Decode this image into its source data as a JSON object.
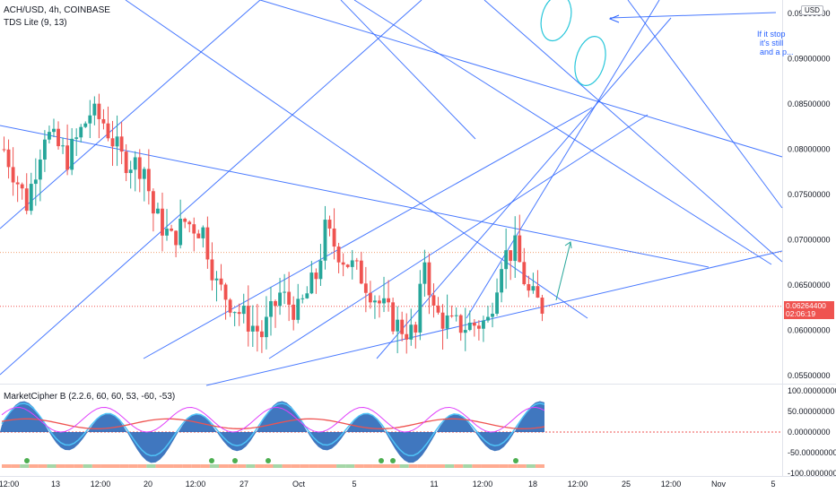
{
  "header": {
    "symbol_line": "ACH/USD, 4h, COINBASE",
    "indicator_line": "TDS Lite (9, 13)",
    "currency_badge": "USD"
  },
  "price_tag": {
    "price": "0.06264400",
    "countdown": "02:06:19",
    "color": "#ef5350"
  },
  "annotation": {
    "lines": [
      "If it stop",
      "it's still",
      "and a p..."
    ],
    "color": "#2962ff"
  },
  "lower_pane": {
    "title": "MarketCipher B (2.2.6, 60, 60, 53, -60, -53)"
  },
  "colors": {
    "up": "#26a69a",
    "down": "#ef5350",
    "trendline": "#2962ff",
    "wave_blue": "#1e5fb4",
    "wave_light": "#4fc3f7",
    "money_flow_red": "#ef5350",
    "money_flow_green": "#8bc34a",
    "vwap_magenta": "#e040fb"
  },
  "chart_data": [
    {
      "type": "candlestick",
      "title": "ACH/USD, 4h, COINBASE",
      "xlabel": "",
      "ylabel": "",
      "x_ticks": [
        "12:00",
        "13",
        "12:00",
        "20",
        "12:00",
        "27",
        "Oct",
        "5",
        "11",
        "12:00",
        "18",
        "12:00",
        "25",
        "12:00",
        "Nov",
        "5"
      ],
      "y_ticks": [
        "0.09500000",
        "0.09000000",
        "0.08500000",
        "0.08000000",
        "0.07500000",
        "0.07000000",
        "0.06500000",
        "0.06000000",
        "0.05500000"
      ],
      "ylim": [
        0.053,
        0.097
      ],
      "last_price": 0.062644,
      "reference_line": 0.0686,
      "candle_count": 120,
      "price_path_anchors": [
        [
          0,
          0.08
        ],
        [
          5,
          0.074
        ],
        [
          9,
          0.082
        ],
        [
          14,
          0.079
        ],
        [
          19,
          0.084
        ],
        [
          22,
          0.083
        ],
        [
          26,
          0.079
        ],
        [
          31,
          0.078
        ],
        [
          33,
          0.073
        ],
        [
          37,
          0.07
        ],
        [
          40,
          0.072
        ],
        [
          44,
          0.071
        ],
        [
          47,
          0.065
        ],
        [
          52,
          0.062
        ],
        [
          57,
          0.0595
        ],
        [
          61,
          0.064
        ],
        [
          65,
          0.062
        ],
        [
          69,
          0.066
        ],
        [
          71,
          0.071
        ],
        [
          75,
          0.068
        ],
        [
          79,
          0.066
        ],
        [
          83,
          0.063
        ],
        [
          87,
          0.0605
        ],
        [
          91,
          0.0595
        ],
        [
          93,
          0.068
        ],
        [
          95,
          0.062
        ],
        [
          99,
          0.0605
        ],
        [
          103,
          0.0605
        ],
        [
          107,
          0.061
        ],
        [
          110,
          0.068
        ],
        [
          113,
          0.069
        ],
        [
          116,
          0.064
        ],
        [
          119,
          0.0626
        ]
      ]
    },
    {
      "type": "line",
      "title": "MarketCipher B (2.2.6, 60, 60, 53, -60, -53)",
      "xlabel": "",
      "ylabel": "",
      "y_ticks": [
        "100.00000000",
        "50.00000000",
        "0.00000000",
        "-50.00000000",
        "-100.00000000"
      ],
      "ylim": [
        -110,
        110
      ],
      "zero_line": 0
    }
  ]
}
